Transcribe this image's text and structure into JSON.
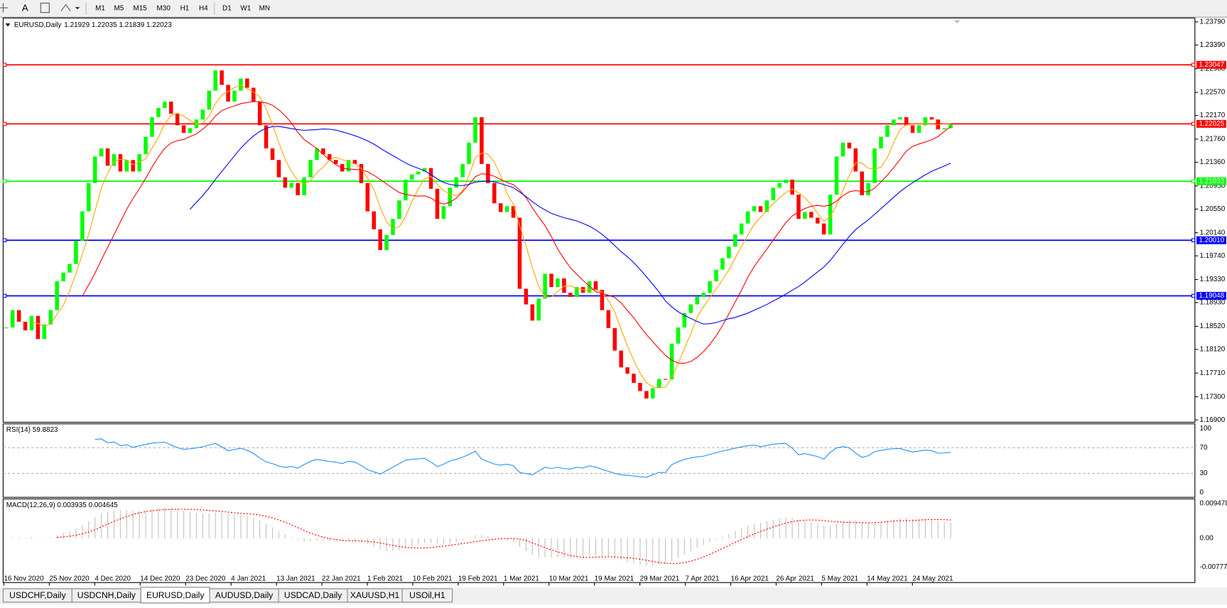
{
  "toolbar": {
    "font_button": "A",
    "buttons": [
      "M1",
      "M5",
      "M15",
      "M30",
      "H1",
      "H4",
      "D1",
      "W1",
      "MN"
    ]
  },
  "chart": {
    "type": "candlestick",
    "symbol": "EURUSD,Daily",
    "ohlc_header": "1.21929 1.22035 1.21839 1.22023",
    "bull_color": "#00ff00",
    "bear_color": "#ff0000",
    "closes": [
      1.185,
      1.188,
      1.186,
      1.1845,
      1.187,
      1.183,
      1.1855,
      1.188,
      1.193,
      1.1945,
      1.196,
      1.2,
      1.2051,
      1.21,
      1.2146,
      1.216,
      1.213,
      1.215,
      1.212,
      1.214,
      1.212,
      1.215,
      1.218,
      1.2214,
      1.223,
      1.2241,
      1.222,
      1.22,
      1.2187,
      1.2195,
      1.221,
      1.2227,
      1.226,
      1.2295,
      1.227,
      1.2241,
      1.226,
      1.2281,
      1.2265,
      1.2241,
      1.22,
      1.216,
      1.214,
      1.211,
      1.2092,
      1.21,
      1.2079,
      1.211,
      1.214,
      1.216,
      1.215,
      1.214,
      1.2133,
      1.212,
      1.214,
      1.2133,
      1.21,
      1.2051,
      1.202,
      1.1984,
      1.201,
      1.2038,
      1.207,
      1.2106,
      1.2115,
      1.212,
      1.2126,
      1.209,
      1.2038,
      1.206,
      1.2092,
      1.211,
      1.2133,
      1.217,
      1.2214,
      1.2133,
      1.21,
      1.2065,
      1.205,
      1.206,
      1.204,
      1.1917,
      1.189,
      1.1862,
      1.19,
      1.1943,
      1.192,
      1.1935,
      1.191,
      1.1903,
      1.192,
      1.191,
      1.193,
      1.1915,
      1.188,
      1.1849,
      1.181,
      1.1781,
      1.177,
      1.1754,
      1.174,
      1.1727,
      1.1745,
      1.1761,
      1.176,
      1.1822,
      1.185,
      1.1875,
      1.189,
      1.1903,
      1.191,
      1.193,
      1.195,
      1.197,
      1.199,
      1.2011,
      1.203,
      1.2051,
      1.206,
      1.205,
      1.207,
      1.2092,
      1.21,
      1.2106,
      1.208,
      1.2038,
      1.205,
      1.204,
      1.203,
      1.2011,
      1.208,
      1.2146,
      1.217,
      1.216,
      1.212,
      1.2079,
      1.21,
      1.216,
      1.218,
      1.22,
      1.221,
      1.2214,
      1.22,
      1.2187,
      1.22,
      1.2214,
      1.221,
      1.2193,
      1.2195,
      1.2202
    ],
    "ylim": [
      1.169,
      1.2379
    ],
    "yticks": [
      {
        "value": 1.2379,
        "label": "1.23790"
      },
      {
        "value": 1.2339,
        "label": "1.23390"
      },
      {
        "value": 1.2298,
        "label": "1.22980"
      },
      {
        "value": 1.2257,
        "label": "1.22570"
      },
      {
        "value": 1.2217,
        "label": "1.22170"
      },
      {
        "value": 1.2176,
        "label": "1.21760"
      },
      {
        "value": 1.2136,
        "label": "1.21360"
      },
      {
        "value": 1.2095,
        "label": "1.20950"
      },
      {
        "value": 1.2055,
        "label": "1.20550"
      },
      {
        "value": 1.2014,
        "label": "1.20140"
      },
      {
        "value": 1.1974,
        "label": "1.19740"
      },
      {
        "value": 1.1933,
        "label": "1.19330"
      },
      {
        "value": 1.1893,
        "label": "1.18930"
      },
      {
        "value": 1.1852,
        "label": "1.18520"
      },
      {
        "value": 1.1812,
        "label": "1.18120"
      },
      {
        "value": 1.1771,
        "label": "1.17710"
      },
      {
        "value": 1.173,
        "label": "1.17300"
      },
      {
        "value": 1.169,
        "label": "1.16900"
      }
    ],
    "levels": [
      {
        "value": 1.23047,
        "label": "1.23047",
        "color": "#ff0000"
      },
      {
        "value": 1.22025,
        "label": "1.22025",
        "color": "#ff0000"
      },
      {
        "value": 1.21032,
        "label": "1.21032",
        "color": "#00ff00"
      },
      {
        "value": 1.2001,
        "label": "1.20010",
        "color": "#0000ff"
      },
      {
        "value": 1.19048,
        "label": "1.19048",
        "color": "#0000ff"
      }
    ],
    "ma": [
      {
        "period": 5,
        "color": "#ffa500"
      },
      {
        "period": 13,
        "color": "#ff0000"
      },
      {
        "period": 30,
        "color": "#0000ff"
      }
    ],
    "dates": [
      "16 Nov 2020",
      "25 Nov 2020",
      "4 Dec 2020",
      "14 Dec 2020",
      "23 Dec 2020",
      "4 Jan 2021",
      "13 Jan 2021",
      "22 Jan 2021",
      "1 Feb 2021",
      "10 Feb 2021",
      "19 Feb 2021",
      "1 Mar 2021",
      "10 Mar 2021",
      "19 Mar 2021",
      "29 Mar 2021",
      "7 Apr 2021",
      "16 Apr 2021",
      "26 Apr 2021",
      "5 May 2021",
      "14 May 2021",
      "24 May 2021"
    ]
  },
  "rsi": {
    "title": "RSI(14) 59.8823",
    "period": 14,
    "color": "#1e90ff",
    "ylim": [
      0,
      100
    ],
    "yticks": [
      100,
      70,
      30,
      0
    ],
    "levels": [
      70,
      30
    ]
  },
  "macd": {
    "title": "MACD(12,26,9) 0.003935 0.004645",
    "fast": 12,
    "slow": 26,
    "signal": 9,
    "hist_color": "#c0c0c0",
    "signal_color": "#ff0000",
    "ylim": [
      -0.007778,
      0.009478
    ],
    "yticks": [
      0.009478,
      {
        "value": 0,
        "label": "0.00"
      },
      -0.007778
    ]
  },
  "tabs": [
    "USDCHF,Daily",
    "USDCNH,Daily",
    "EURUSD,Daily",
    "AUDUSD,Daily",
    "USDCAD,Daily",
    "XAUUSD,H1",
    "USOil,H1"
  ],
  "active_tab": 2
}
